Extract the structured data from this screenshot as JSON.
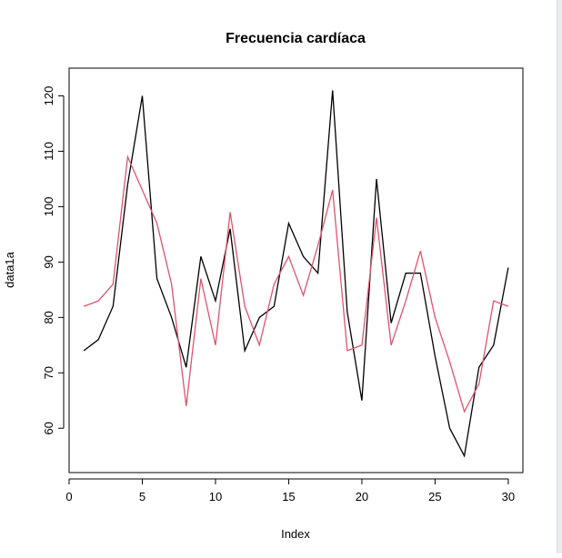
{
  "colors": {
    "background": "#ffffff",
    "series_1": "#000000",
    "series_2": "#df536b",
    "right_strip": "#e9edf2"
  },
  "chart_data": {
    "type": "line",
    "title": "Frecuencia cardíaca",
    "xlabel": "Index",
    "ylabel": "data1a",
    "xlim": [
      0,
      31
    ],
    "ylim": [
      52,
      125
    ],
    "x_ticks": [
      0,
      5,
      10,
      15,
      20,
      25,
      30
    ],
    "y_ticks": [
      60,
      70,
      80,
      90,
      100,
      110,
      120
    ],
    "grid": false,
    "x": [
      1,
      2,
      3,
      4,
      5,
      6,
      7,
      8,
      9,
      10,
      11,
      12,
      13,
      14,
      15,
      16,
      17,
      18,
      19,
      20,
      21,
      22,
      23,
      24,
      25,
      26,
      27,
      28,
      29,
      30
    ],
    "series": [
      {
        "color": "#000000",
        "values": [
          74,
          76,
          82,
          104,
          120,
          87,
          80,
          71,
          91,
          83,
          96,
          74,
          80,
          82,
          97,
          91,
          88,
          121,
          81,
          65,
          105,
          79,
          88,
          88,
          73,
          60,
          55,
          71,
          75,
          89
        ]
      },
      {
        "color": "#df536b",
        "values": [
          82,
          83,
          86,
          109,
          103,
          97,
          86,
          64,
          87,
          75,
          99,
          82,
          75,
          86,
          91,
          84,
          93,
          103,
          74,
          75,
          98,
          75,
          83,
          92,
          80,
          72,
          63,
          68,
          83,
          82
        ]
      }
    ]
  }
}
